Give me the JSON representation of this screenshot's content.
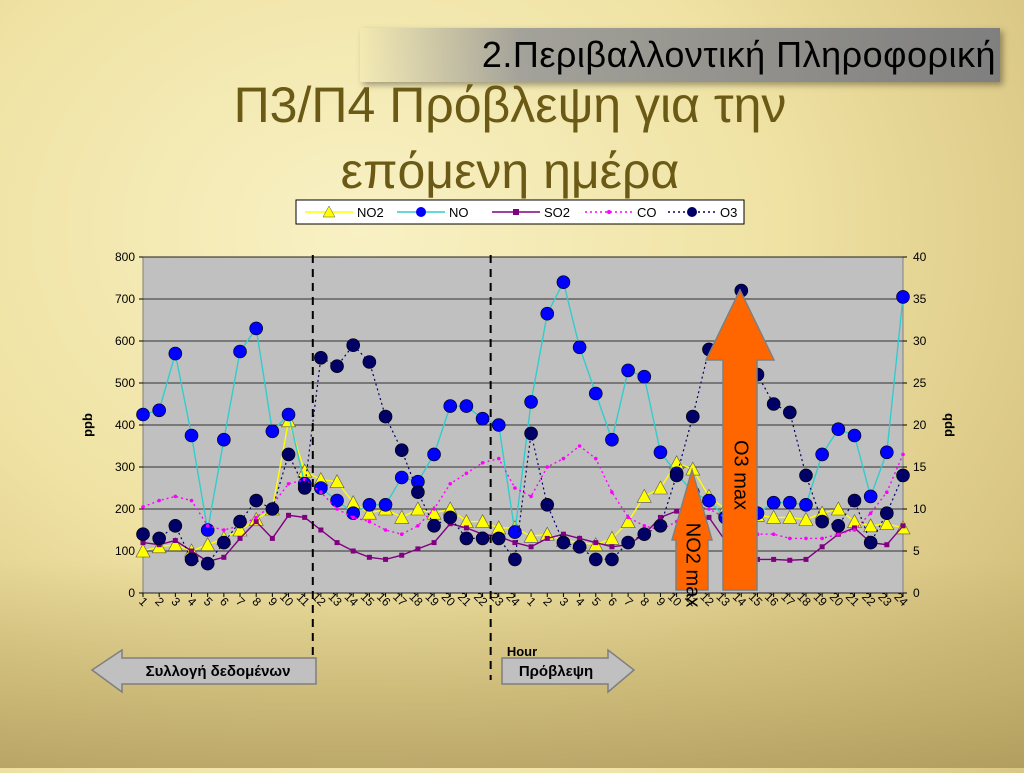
{
  "slide": {
    "header": "2.Περιβαλλοντική Πληροφορική",
    "title_line1": "Π3/Π4 Πρόβλεψη για την",
    "title_line2": "επόμενη ημέρα",
    "left_arrow_label": "Συλλογή δεδομένων",
    "right_arrow_label": "Πρόβλεψη",
    "o3_arrow_label": "O3 max",
    "no2_arrow_label": "NO2 max"
  },
  "chart_data": {
    "type": "line",
    "xlabel": "Hour",
    "ylabel": "ppb",
    "ylabel_right": "ppb",
    "ylim": [
      0,
      800
    ],
    "y2lim": [
      0,
      40
    ],
    "yticks": [
      0,
      100,
      200,
      300,
      400,
      500,
      600,
      700,
      800
    ],
    "y2ticks": [
      0,
      5,
      10,
      15,
      20,
      25,
      30,
      35,
      40
    ],
    "categories": [
      "1",
      "2",
      "3",
      "4",
      "5",
      "6",
      "7",
      "8",
      "9",
      "10",
      "11",
      "12",
      "13",
      "14",
      "15",
      "16",
      "17",
      "18",
      "19",
      "20",
      "21",
      "22",
      "23",
      "24",
      "1",
      "2",
      "3",
      "4",
      "5",
      "6",
      "7",
      "8",
      "9",
      "10",
      "11",
      "12",
      "13",
      "14",
      "15",
      "16",
      "17",
      "18",
      "19",
      "20",
      "21",
      "22",
      "23",
      "24"
    ],
    "dividers_after_index": [
      10.5,
      21.5
    ],
    "legend_position": "top",
    "series": [
      {
        "name": "NO2",
        "axis": "left",
        "color": "#ffff00",
        "line": "#ffff00",
        "marker": "triangle",
        "values": [
          100,
          110,
          115,
          100,
          115,
          130,
          150,
          175,
          200,
          410,
          290,
          270,
          265,
          215,
          190,
          200,
          180,
          200,
          190,
          200,
          170,
          170,
          155,
          155,
          135,
          140,
          125,
          120,
          115,
          130,
          170,
          230,
          250,
          310,
          295,
          230,
          200,
          200,
          185,
          180,
          180,
          175,
          190,
          200,
          170,
          160,
          165,
          155
        ]
      },
      {
        "name": "NO",
        "axis": "left",
        "color": "#0000ff",
        "line": "#33cccc",
        "marker": "circle",
        "values": [
          425,
          435,
          570,
          375,
          150,
          365,
          575,
          630,
          385,
          425,
          260,
          250,
          220,
          190,
          210,
          210,
          275,
          265,
          330,
          445,
          445,
          415,
          400,
          145,
          455,
          665,
          740,
          585,
          475,
          365,
          530,
          515,
          335,
          285,
          240,
          220,
          180,
          210,
          190,
          215,
          215,
          210,
          330,
          390,
          375,
          230,
          335,
          705
        ]
      },
      {
        "name": "SO2",
        "axis": "left",
        "color": "#800080",
        "line": "#800080",
        "marker": "square",
        "values": [
          120,
          115,
          125,
          100,
          75,
          85,
          130,
          170,
          130,
          185,
          180,
          150,
          120,
          100,
          85,
          80,
          90,
          105,
          120,
          165,
          155,
          140,
          135,
          120,
          110,
          130,
          140,
          130,
          120,
          110,
          115,
          140,
          180,
          195,
          175,
          180,
          125,
          120,
          80,
          80,
          78,
          80,
          110,
          140,
          155,
          120,
          115,
          160
        ]
      },
      {
        "name": "CO",
        "axis": "left",
        "color": "#ff00ff",
        "line": "#ff00ff",
        "marker": "dot",
        "values": [
          205,
          220,
          230,
          220,
          160,
          150,
          160,
          180,
          210,
          260,
          270,
          240,
          200,
          180,
          170,
          150,
          140,
          160,
          200,
          260,
          285,
          310,
          320,
          250,
          230,
          300,
          320,
          350,
          320,
          240,
          180,
          160,
          150,
          170,
          210,
          200,
          180,
          150,
          140,
          140,
          130,
          130,
          130,
          140,
          150,
          190,
          240,
          330
        ]
      },
      {
        "name": "O3",
        "axis": "right",
        "color": "#000066",
        "line": "#000066",
        "marker": "circle",
        "dashed": true,
        "values": [
          7,
          6.5,
          8,
          4,
          3.5,
          6,
          8.5,
          11,
          10,
          16.5,
          12.5,
          28,
          27,
          29.5,
          27.5,
          21,
          17,
          12,
          8,
          9,
          6.5,
          6.5,
          6.5,
          4,
          19,
          10.5,
          6,
          5.5,
          4,
          4,
          6,
          7,
          8,
          14,
          21,
          29,
          30.5,
          36,
          26,
          22.5,
          21.5,
          14,
          8.5,
          8,
          11,
          6,
          9.5,
          14
        ]
      }
    ]
  }
}
